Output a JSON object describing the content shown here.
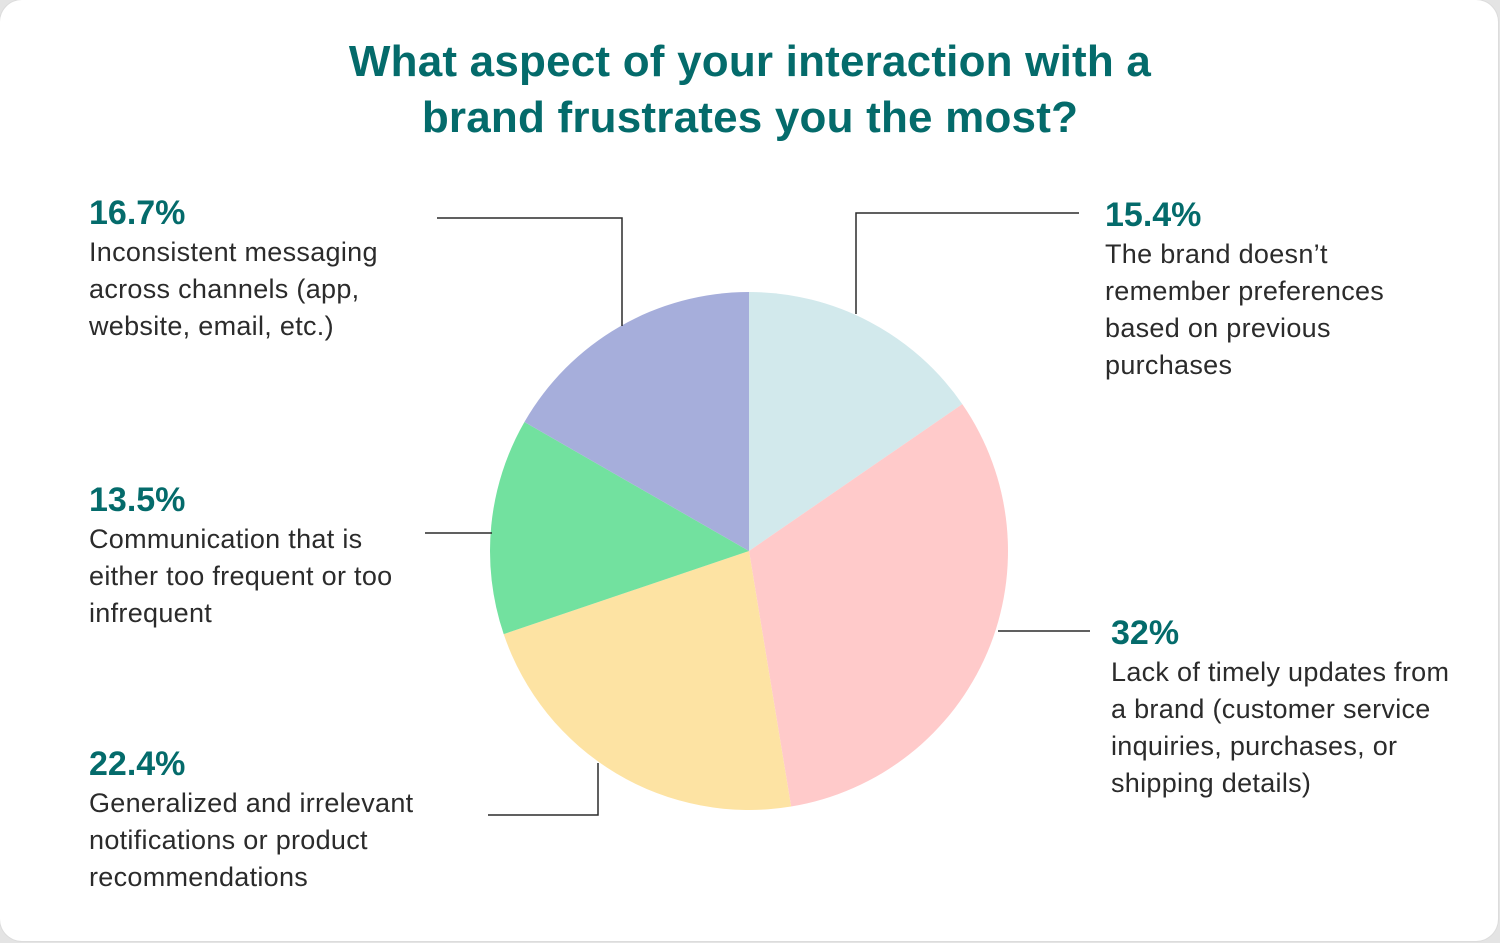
{
  "chart_data": {
    "type": "pie",
    "title_lines": [
      "What aspect of your interaction with a",
      "brand frustrates you the most?"
    ],
    "slices": [
      {
        "value": 15.4,
        "label": "15.4%",
        "description": "The brand doesn’t remember preferences based on previous purchases",
        "color": "#d2e9ec"
      },
      {
        "value": 32,
        "label": "32%",
        "description": "Lack of timely updates from a brand (customer service inquiries, purchases, or shipping details)",
        "color": "#ffcaca"
      },
      {
        "value": 22.4,
        "label": "22.4%",
        "description": "Generalized and irrelevant notifications or product recommendations",
        "color": "#fde3a3"
      },
      {
        "value": 13.5,
        "label": "13.5%",
        "description": "Communication that is either too frequent or too infrequent",
        "color": "#72e19f"
      },
      {
        "value": 16.7,
        "label": "16.7%",
        "description": "Inconsistent messaging across channels (app, website, email, etc.)",
        "color": "#a6aedb"
      }
    ],
    "start": "12 o'clock",
    "direction": "clockwise"
  },
  "colors": {
    "title": "#046b6b",
    "percent": "#046b6b",
    "text": "#2b2b2b",
    "leader_line": "#2b2b2b"
  }
}
